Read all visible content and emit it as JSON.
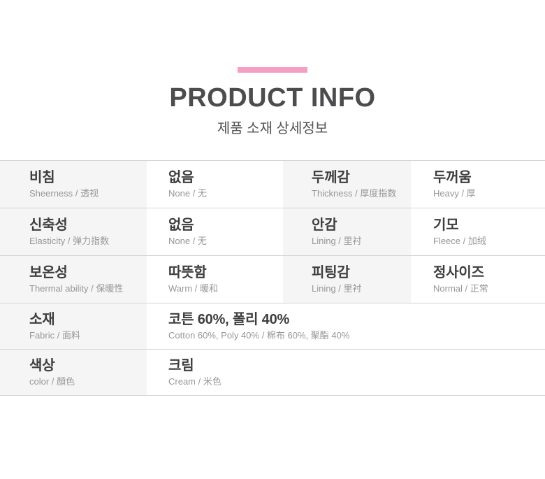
{
  "colors": {
    "accent_pink": "#f59fc5",
    "label_cell_bg": "#f5f5f5",
    "border_gray": "#d5d5d5",
    "title_gray": "#4c4c4f"
  },
  "header": {
    "title": "PRODUCT INFO",
    "subtitle": "제품 소재 상세정보"
  },
  "table": {
    "rows": [
      {
        "cells": [
          {
            "type": "label",
            "main": "비침",
            "sub": "Sheerness / 透视"
          },
          {
            "type": "value",
            "main": "없음",
            "sub": "None / 无"
          },
          {
            "type": "label",
            "main": "두께감",
            "sub": "Thickness / 厚度指数"
          },
          {
            "type": "value",
            "main": "두꺼움",
            "sub": "Heavy / 厚"
          }
        ]
      },
      {
        "cells": [
          {
            "type": "label",
            "main": "신축성",
            "sub": "Elasticity / 弹力指数"
          },
          {
            "type": "value",
            "main": "없음",
            "sub": "None / 无"
          },
          {
            "type": "label",
            "main": "안감",
            "sub": "Lining / 里衬"
          },
          {
            "type": "value",
            "main": "기모",
            "sub": "Fleece / 加绒"
          }
        ]
      },
      {
        "cells": [
          {
            "type": "label",
            "main": "보온성",
            "sub": "Thermal ability / 保暖性"
          },
          {
            "type": "value",
            "main": "따뜻함",
            "sub": "Warm / 暖和"
          },
          {
            "type": "label",
            "main": "피팅감",
            "sub": "Lining / 里衬"
          },
          {
            "type": "value",
            "main": "정사이즈",
            "sub": "Normal / 正常"
          }
        ]
      },
      {
        "cells": [
          {
            "type": "label",
            "main": "소재",
            "sub": "Fabric / 面料"
          },
          {
            "type": "value",
            "main": "코튼 60%, 폴리 40%",
            "sub": "Cotton 60%, Poly 40% / 棉布 60%, 聚酯 40%"
          }
        ]
      },
      {
        "cells": [
          {
            "type": "label",
            "main": "색상",
            "sub": "color / 顏色"
          },
          {
            "type": "value",
            "main": "크림",
            "sub": "Cream / 米色"
          }
        ]
      }
    ]
  }
}
